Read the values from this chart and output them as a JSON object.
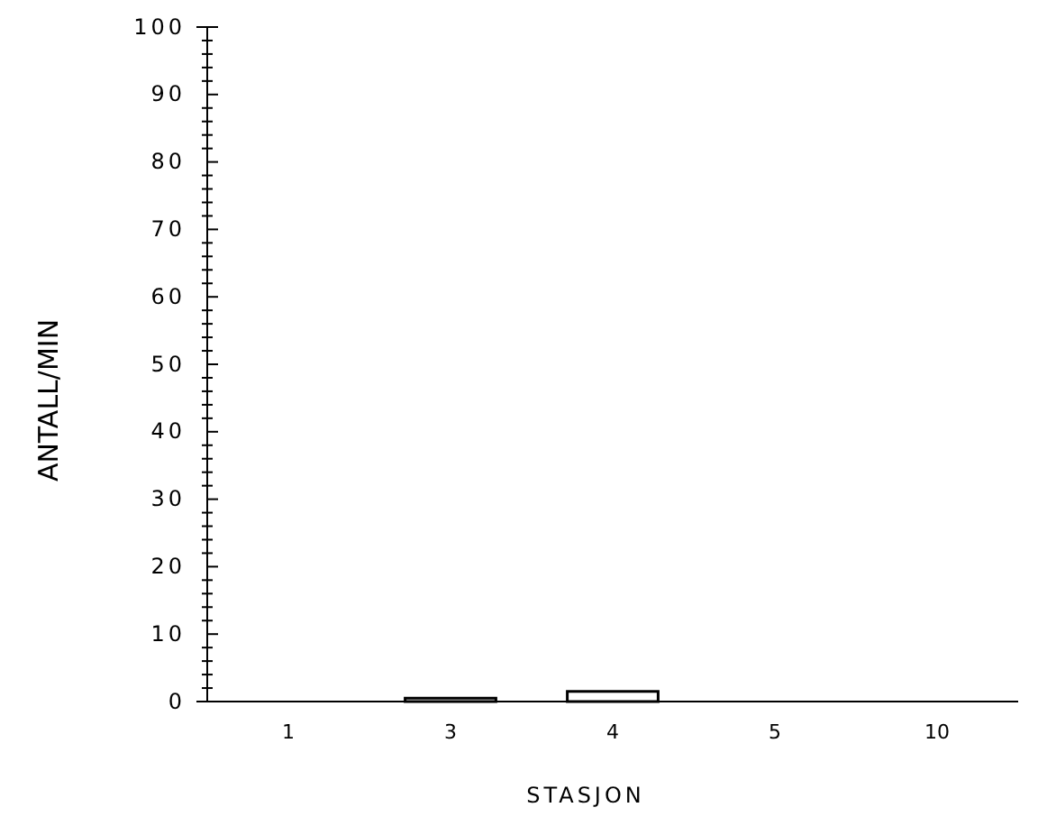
{
  "chart_data": {
    "type": "bar",
    "xlabel": "STASJON",
    "ylabel": "ANTALL/MIN",
    "categories": [
      "1",
      "3",
      "4",
      "5",
      "10"
    ],
    "values": [
      0,
      0.5,
      1.5,
      0,
      0
    ],
    "color": "#ffffff",
    "ylim": [
      0,
      100
    ],
    "yticks": [
      0,
      {
        "value": 2,
        "label": null
      },
      {
        "value": 4,
        "label": null
      },
      {
        "value": 6,
        "label": null
      },
      {
        "value": 8,
        "label": null
      },
      10,
      {
        "value": 12,
        "label": null
      },
      {
        "value": 14,
        "label": null
      },
      {
        "value": 16,
        "label": null
      },
      {
        "value": 18,
        "label": null
      },
      20,
      {
        "value": 22,
        "label": null
      },
      {
        "value": 24,
        "label": null
      },
      {
        "value": 26,
        "label": null
      },
      {
        "value": 28,
        "label": null
      },
      30,
      {
        "value": 32,
        "label": null
      },
      {
        "value": 34,
        "label": null
      },
      {
        "value": 36,
        "label": null
      },
      {
        "value": 38,
        "label": null
      },
      40,
      {
        "value": 42,
        "label": null
      },
      {
        "value": 44,
        "label": null
      },
      {
        "value": 46,
        "label": null
      },
      {
        "value": 48,
        "label": null
      },
      50,
      {
        "value": 52,
        "label": null
      },
      {
        "value": 54,
        "label": null
      },
      {
        "value": 56,
        "label": null
      },
      {
        "value": 58,
        "label": null
      },
      60,
      {
        "value": 62,
        "label": null
      },
      {
        "value": 64,
        "label": null
      },
      {
        "value": 66,
        "label": null
      },
      {
        "value": 68,
        "label": null
      },
      70,
      {
        "value": 72,
        "label": null
      },
      {
        "value": 74,
        "label": null
      },
      {
        "value": 76,
        "label": null
      },
      {
        "value": 78,
        "label": null
      },
      80,
      {
        "value": 82,
        "label": null
      },
      {
        "value": 84,
        "label": null
      },
      {
        "value": 86,
        "label": null
      },
      {
        "value": 88,
        "label": null
      },
      90,
      {
        "value": 92,
        "label": null
      },
      {
        "value": 94,
        "label": null
      },
      {
        "value": 96,
        "label": null
      },
      {
        "value": 98,
        "label": null
      },
      100
    ],
    "grid": false
  }
}
